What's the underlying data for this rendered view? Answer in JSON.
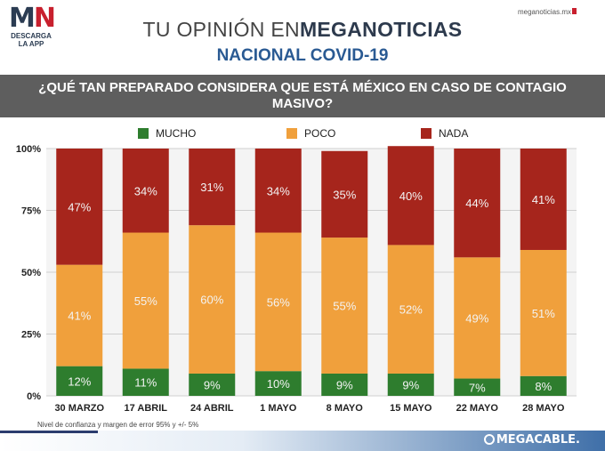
{
  "header": {
    "logo_mark_left": "M",
    "logo_mark_right": "N",
    "logo_line1": "DESCARGA",
    "logo_line2": "LA APP",
    "title_light": "TU OPINIÓN EN",
    "title_bold": "MEGANOTICIAS",
    "subtitle": "NACIONAL COVID-19",
    "site": "meganoticias.mx",
    "question": "¿QUÉ TAN PREPARADO CONSIDERA QUE ESTÁ MÉXICO EN CASO DE CONTAGIO MASIVO?"
  },
  "colors": {
    "mucho": "#2e7d2e",
    "poco": "#f0a03c",
    "nada": "#a6251c",
    "grid": "#cfcfcf"
  },
  "chart_data": {
    "type": "bar",
    "stacked": true,
    "categories": [
      "30 MARZO",
      "17 ABRIL",
      "24 ABRIL",
      "1 MAYO",
      "8 MAYO",
      "15 MAYO",
      "22 MAYO",
      "28 MAYO"
    ],
    "series": [
      {
        "name": "MUCHO",
        "values": [
          12,
          11,
          9,
          10,
          9,
          9,
          7,
          8
        ]
      },
      {
        "name": "POCO",
        "values": [
          41,
          55,
          60,
          56,
          55,
          52,
          49,
          51
        ]
      },
      {
        "name": "NADA",
        "values": [
          47,
          34,
          31,
          34,
          35,
          40,
          44,
          41
        ]
      }
    ],
    "ylim": [
      0,
      100
    ],
    "yticks": [
      "0%",
      "25%",
      "50%",
      "75%",
      "100%"
    ],
    "ytick_values": [
      0,
      25,
      50,
      75,
      100
    ],
    "legend_position": "top",
    "grid": true
  },
  "footer": {
    "note": "Nivel de confianza y margen de error 95% y +/- 5%",
    "brand": "MEGACABLE."
  }
}
